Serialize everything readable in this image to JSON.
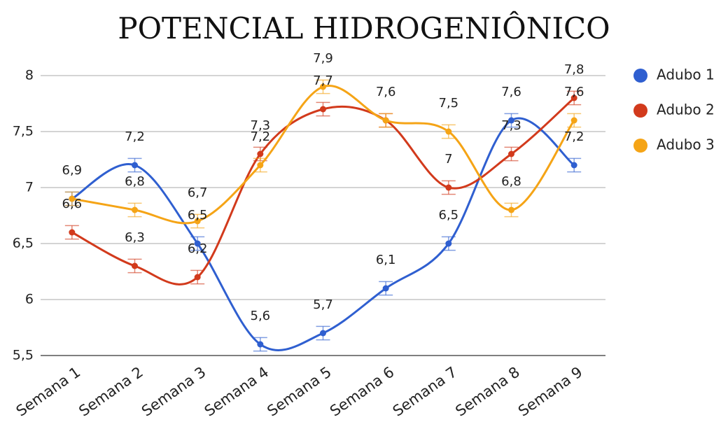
{
  "chart_data": {
    "type": "line",
    "title": "POTENCIAL HIDROGENIÔNICO",
    "categories": [
      "Semana 1",
      "Semana 2",
      "Semana 3",
      "Semana 4",
      "Semana 5",
      "Semana 6",
      "Semana 7",
      "Semana 8",
      "Semana 9"
    ],
    "series": [
      {
        "name": "Adubo 1",
        "color": "#2f5fd0",
        "values": [
          6.9,
          7.2,
          6.5,
          5.6,
          5.7,
          6.1,
          6.5,
          7.6,
          7.2
        ],
        "value_labels": [
          "6,9",
          "7,2",
          "6,5",
          "5,6",
          "5,7",
          "6,1",
          "6,5",
          "7,6",
          "7,2"
        ],
        "errors": [
          0.06,
          0.06,
          0.06,
          0.06,
          0.06,
          0.06,
          0.06,
          0.06,
          0.06
        ]
      },
      {
        "name": "Adubo 2",
        "color": "#d23a1c",
        "values": [
          6.6,
          6.3,
          6.2,
          7.3,
          7.7,
          7.6,
          7.0,
          7.3,
          7.8
        ],
        "value_labels": [
          "6,6",
          "6,3",
          "6,2",
          "7,3",
          "7,7",
          "7,6",
          "7",
          "7,3",
          "7,8"
        ],
        "errors": [
          0.06,
          0.06,
          0.06,
          0.06,
          0.06,
          0.06,
          0.06,
          0.06,
          0.06
        ]
      },
      {
        "name": "Adubo 3",
        "color": "#f5a416",
        "values": [
          6.9,
          6.8,
          6.7,
          7.2,
          7.9,
          7.6,
          7.5,
          6.8,
          7.6
        ],
        "value_labels": [
          null,
          "6,8",
          "6,7",
          "7,2",
          "7,9",
          null,
          "7,5",
          "6,8",
          "7,6"
        ],
        "errors": [
          0.06,
          0.06,
          0.06,
          0.06,
          0.06,
          0.06,
          0.06,
          0.06,
          0.06
        ]
      }
    ],
    "ylim": [
      5.5,
      8
    ],
    "yticks": [
      {
        "value": 5.5,
        "label": "5,5"
      },
      6,
      {
        "value": 6.5,
        "label": "6,5"
      },
      7,
      {
        "value": 7.5,
        "label": "7,5"
      },
      8
    ],
    "grid": true,
    "smooth": true,
    "legend": "right"
  }
}
